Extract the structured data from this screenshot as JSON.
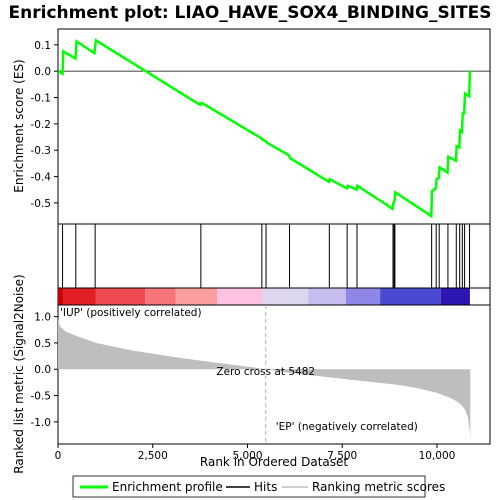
{
  "chart_data": {
    "type": "line",
    "title": "Enrichment plot: LIAO_HAVE_SOX4_BINDING_SITES",
    "xlabel": "Rank in Ordered Dataset",
    "ylabel_top": "Enrichment score (ES)",
    "ylabel_bottom": "Ranked list metric (Signal2Noise)",
    "x_ticks": [
      0,
      2500,
      5000,
      7500,
      10000
    ],
    "x_tick_labels": [
      "0",
      "2,500",
      "5,000",
      "7,500",
      "10,000"
    ],
    "xlim": [
      0,
      11400
    ],
    "es_ylim": [
      -0.58,
      0.16
    ],
    "es_ticks": [
      0.1,
      0.0,
      -0.1,
      -0.2,
      -0.3,
      -0.4,
      -0.5
    ],
    "es_tick_labels": [
      "0.1",
      "0.0",
      "-0.1",
      "-0.2",
      "-0.3",
      "-0.4",
      "-0.5"
    ],
    "metric_ylim": [
      -1.42,
      1.22
    ],
    "metric_ticks": [
      1.0,
      0.5,
      0.0,
      -0.5,
      -1.0
    ],
    "metric_tick_labels": [
      "1.0",
      "0.5",
      "0.0",
      "-0.5",
      "-1.0"
    ],
    "enrichment_profile": {
      "x": [
        0,
        120,
        140,
        460,
        490,
        960,
        1000,
        3750,
        3790,
        5370,
        5390,
        5480,
        5500,
        6100,
        6120,
        7150,
        7170,
        7620,
        7650,
        7880,
        7900,
        8830,
        8850,
        8880,
        8900,
        9850,
        9870,
        9970,
        9990,
        10050,
        10070,
        10280,
        10300,
        10500,
        10520,
        10590,
        10610,
        10660,
        10680,
        10720,
        10740,
        10850,
        10870
      ],
      "y": [
        0.0,
        -0.01,
        0.075,
        0.048,
        0.113,
        0.068,
        0.117,
        -0.128,
        -0.12,
        -0.255,
        -0.26,
        -0.265,
        -0.27,
        -0.32,
        -0.33,
        -0.42,
        -0.41,
        -0.445,
        -0.435,
        -0.45,
        -0.435,
        -0.522,
        -0.5,
        -0.495,
        -0.46,
        -0.55,
        -0.455,
        -0.445,
        -0.41,
        -0.405,
        -0.365,
        -0.385,
        -0.325,
        -0.34,
        -0.285,
        -0.29,
        -0.225,
        -0.23,
        -0.16,
        -0.16,
        -0.085,
        -0.095,
        0.003
      ]
    },
    "hits": [
      120,
      470,
      980,
      3770,
      5380,
      5490,
      6110,
      7160,
      7630,
      7890,
      8840,
      8870,
      8890,
      9860,
      9980,
      10060,
      10290,
      10510,
      10600,
      10670,
      10730,
      10860
    ],
    "ranking_metric": {
      "x": [
        0,
        50,
        200,
        500,
        1000,
        2000,
        3000,
        4000,
        5000,
        5482,
        6000,
        7000,
        8000,
        9000,
        9500,
        10000,
        10300,
        10500,
        10650,
        10750,
        10820,
        10870,
        10880
      ],
      "y": [
        0.95,
        0.82,
        0.72,
        0.63,
        0.5,
        0.35,
        0.24,
        0.14,
        0.05,
        0.0,
        -0.06,
        -0.14,
        -0.22,
        -0.3,
        -0.36,
        -0.45,
        -0.53,
        -0.6,
        -0.68,
        -0.78,
        -0.92,
        -1.2,
        -1.35
      ]
    },
    "zero_cross": 5482,
    "zero_cross_label": "Zero cross at 5482",
    "pos_label": "'IUP' (positively correlated)",
    "neg_label": "'EP' (negatively correlated)",
    "colors": {
      "profile": "#00ff00",
      "hits": "#000000",
      "metric_fill": "#bebebe",
      "pos_text": "#ff0000",
      "neg_text": "#0000ff",
      "zero_line": "#b0b0b0"
    },
    "heat_strip": [
      {
        "start": 0,
        "end": 150,
        "color": "#cc0000"
      },
      {
        "start": 150,
        "end": 1000,
        "color": "#e21f26"
      },
      {
        "start": 1000,
        "end": 2300,
        "color": "#ef4a52"
      },
      {
        "start": 2300,
        "end": 3100,
        "color": "#f5757a"
      },
      {
        "start": 3100,
        "end": 4200,
        "color": "#fa9ea0"
      },
      {
        "start": 4200,
        "end": 5400,
        "color": "#fdc1e2"
      },
      {
        "start": 5400,
        "end": 6600,
        "color": "#dcd6ee"
      },
      {
        "start": 6600,
        "end": 7600,
        "color": "#c6bdee"
      },
      {
        "start": 7600,
        "end": 8500,
        "color": "#8f87e6"
      },
      {
        "start": 8500,
        "end": 10100,
        "color": "#4a4ad1"
      },
      {
        "start": 10100,
        "end": 10870,
        "color": "#2b16b4"
      }
    ],
    "legend": [
      "Enrichment profile",
      "Hits",
      "Ranking metric scores"
    ]
  }
}
